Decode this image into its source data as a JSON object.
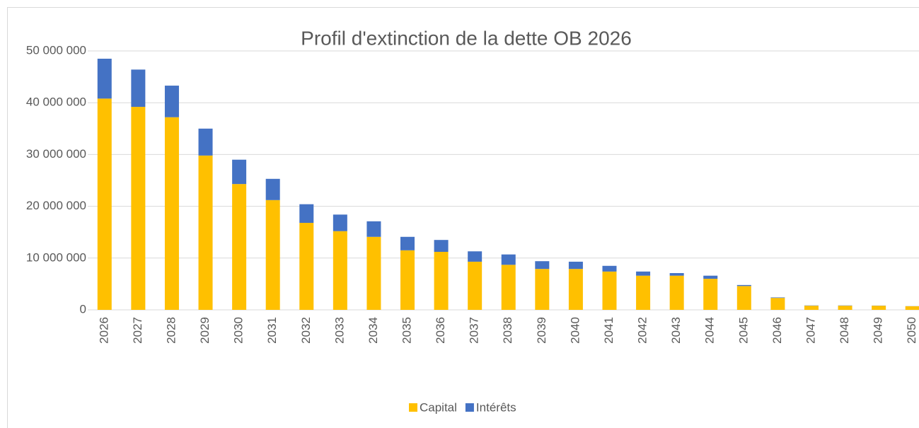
{
  "chart_data": {
    "type": "stacked_bar",
    "title": "Profil d'extinction de la dette OB 2026",
    "categories": [
      "2026",
      "2027",
      "2028",
      "2029",
      "2030",
      "2031",
      "2032",
      "2033",
      "2034",
      "2035",
      "2036",
      "2037",
      "2038",
      "2039",
      "2040",
      "2041",
      "2042",
      "2043",
      "2044",
      "2045",
      "2046",
      "2047",
      "2048",
      "2049",
      "2050"
    ],
    "series": [
      {
        "name": "Capital",
        "color": "#ffc000",
        "values": [
          40800000,
          39200000,
          37200000,
          29800000,
          24300000,
          21200000,
          16800000,
          15200000,
          14100000,
          11500000,
          11200000,
          9300000,
          8700000,
          7900000,
          7900000,
          7400000,
          6600000,
          6600000,
          6000000,
          4600000,
          2300000,
          800000,
          800000,
          800000,
          700000
        ]
      },
      {
        "name": "Intérêts",
        "color": "#4472c4",
        "values": [
          7700000,
          7200000,
          6100000,
          5200000,
          4700000,
          4100000,
          3600000,
          3200000,
          3000000,
          2600000,
          2300000,
          2000000,
          2000000,
          1500000,
          1400000,
          1100000,
          800000,
          500000,
          600000,
          200000,
          100000,
          50000,
          50000,
          30000,
          20000
        ]
      }
    ],
    "ylim": [
      0,
      50000000
    ],
    "yticks": [
      0,
      {
        "value": 10000000,
        "label": "10 000 000"
      },
      {
        "value": 20000000,
        "label": "20 000 000"
      },
      {
        "value": 30000000,
        "label": "30 000 000"
      },
      {
        "value": 40000000,
        "label": "40 000 000"
      },
      {
        "value": 50000000,
        "label": "50 000 000"
      }
    ],
    "grid": true,
    "legend": "bottom"
  }
}
